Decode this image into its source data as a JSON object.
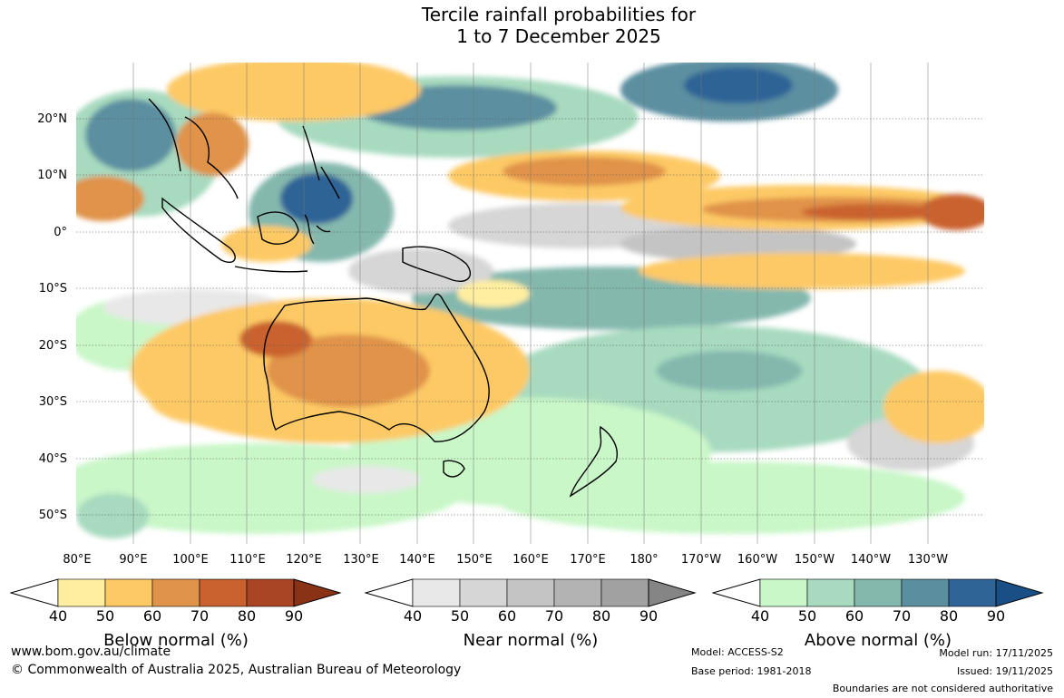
{
  "title_line1": "Tercile rainfall probabilities for",
  "title_line2": "1 to 7 December 2025",
  "lat_labels": [
    "20°N",
    "10°N",
    "0°",
    "10°S",
    "20°S",
    "30°S",
    "40°S",
    "50°S"
  ],
  "lon_labels": [
    "80°E",
    "90°E",
    "100°E",
    "110°E",
    "120°E",
    "130°E",
    "140°E",
    "150°E",
    "160°E",
    "170°E",
    "180°",
    "170°W",
    "160°W",
    "150°W",
    "140°W",
    "130°W"
  ],
  "colorbars": [
    {
      "label": "Below normal (%)",
      "ticks": [
        "40",
        "50",
        "60",
        "70",
        "80",
        "90"
      ],
      "colors": [
        "#ffeea0",
        "#fdc965",
        "#e0934a",
        "#c9622f",
        "#a94424",
        "#8a3216"
      ]
    },
    {
      "label": "Near normal (%)",
      "ticks": [
        "40",
        "50",
        "60",
        "70",
        "80",
        "90"
      ],
      "colors": [
        "#e8e8e8",
        "#d6d6d6",
        "#c4c4c4",
        "#b3b3b3",
        "#a1a1a1",
        "#858585"
      ]
    },
    {
      "label": "Above normal (%)",
      "ticks": [
        "40",
        "50",
        "60",
        "70",
        "80",
        "90"
      ],
      "colors": [
        "#c9f7c8",
        "#a7dabf",
        "#84b8ad",
        "#5b8fa0",
        "#2e6496",
        "#1a4f86"
      ]
    }
  ],
  "footer": {
    "url": "www.bom.gov.au/climate",
    "copyright": "© Commonwealth of Australia 2025, Australian Bureau of Meteorology",
    "model": "Model: ACCESS-S2",
    "base_period": "Base period: 1981-2018",
    "model_run": "Model run: 17/11/2025",
    "issued": "Issued: 19/11/2025",
    "disclaimer": "Boundaries are not considered authoritative"
  }
}
